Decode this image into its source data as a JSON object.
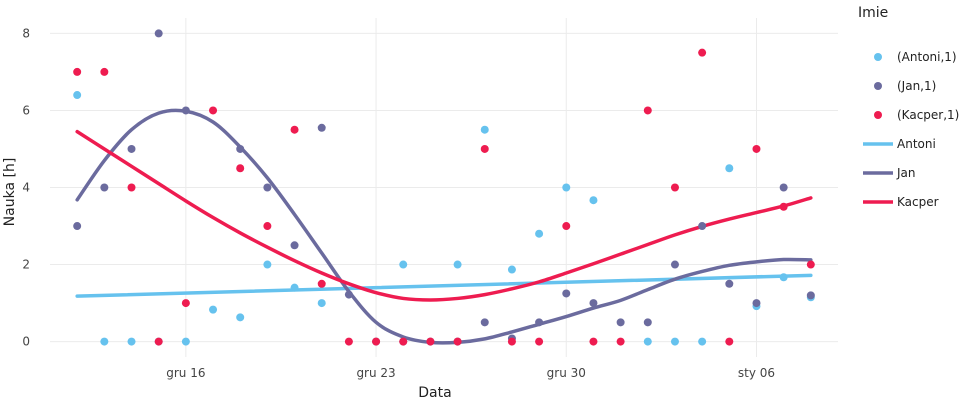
{
  "chart_data": {
    "type": "scatter",
    "xlabel": "Data",
    "ylabel": "Nauka [h]",
    "x_range": [
      "2023-12-11",
      "2024-01-09"
    ],
    "ylim": [
      -0.4,
      8.4
    ],
    "y_ticks": [
      0,
      2,
      4,
      6,
      8
    ],
    "x_ticks": [
      {
        "date": "2023-12-16",
        "label": "gru 16"
      },
      {
        "date": "2023-12-23",
        "label": "gru 23"
      },
      {
        "date": "2023-12-30",
        "label": "gru 30"
      },
      {
        "date": "2024-01-06",
        "label": "sty 06"
      }
    ],
    "grid": true,
    "legend": {
      "title": "Imie",
      "position": "right"
    },
    "series": [
      {
        "name": "(Antoni,1)",
        "kind": "markers",
        "color": "#66c2ee",
        "points": [
          [
            "2023-12-12",
            6.4
          ],
          [
            "2023-12-13",
            0
          ],
          [
            "2023-12-14",
            0
          ],
          [
            "2023-12-15",
            0
          ],
          [
            "2023-12-16",
            0
          ],
          [
            "2023-12-17",
            0.83
          ],
          [
            "2023-12-18",
            0.63
          ],
          [
            "2023-12-19",
            2
          ],
          [
            "2023-12-20",
            1.4
          ],
          [
            "2023-12-21",
            1
          ],
          [
            "2023-12-24",
            2
          ],
          [
            "2023-12-26",
            2
          ],
          [
            "2023-12-27",
            5.5
          ],
          [
            "2023-12-28",
            1.87
          ],
          [
            "2023-12-29",
            2.8
          ],
          [
            "2023-12-30",
            4
          ],
          [
            "2023-12-31",
            3.67
          ],
          [
            "2024-01-02",
            0
          ],
          [
            "2024-01-03",
            0
          ],
          [
            "2024-01-04",
            0
          ],
          [
            "2024-01-05",
            4.5
          ],
          [
            "2024-01-06",
            0.92
          ],
          [
            "2024-01-07",
            1.67
          ],
          [
            "2024-01-08",
            1.15
          ]
        ]
      },
      {
        "name": "(Jan,1)",
        "kind": "markers",
        "color": "#6b6b9e",
        "points": [
          [
            "2023-12-12",
            3
          ],
          [
            "2023-12-13",
            4
          ],
          [
            "2023-12-14",
            5
          ],
          [
            "2023-12-15",
            8
          ],
          [
            "2023-12-16",
            6
          ],
          [
            "2023-12-18",
            5
          ],
          [
            "2023-12-19",
            4
          ],
          [
            "2023-12-20",
            2.5
          ],
          [
            "2023-12-21",
            5.55
          ],
          [
            "2023-12-22",
            1.22
          ],
          [
            "2023-12-23",
            0
          ],
          [
            "2023-12-24",
            0
          ],
          [
            "2023-12-25",
            0
          ],
          [
            "2023-12-26",
            0
          ],
          [
            "2023-12-27",
            0.5
          ],
          [
            "2023-12-28",
            0.08
          ],
          [
            "2023-12-29",
            0.5
          ],
          [
            "2023-12-30",
            1.25
          ],
          [
            "2023-12-31",
            1
          ],
          [
            "2024-01-01",
            0.5
          ],
          [
            "2024-01-02",
            0.5
          ],
          [
            "2024-01-03",
            2
          ],
          [
            "2024-01-04",
            3
          ],
          [
            "2024-01-05",
            1.5
          ],
          [
            "2024-01-06",
            1
          ],
          [
            "2024-01-07",
            4
          ],
          [
            "2024-01-08",
            1.2
          ]
        ]
      },
      {
        "name": "(Kacper,1)",
        "kind": "markers",
        "color": "#ee1c50",
        "points": [
          [
            "2023-12-12",
            7
          ],
          [
            "2023-12-13",
            7
          ],
          [
            "2023-12-14",
            4
          ],
          [
            "2023-12-15",
            0
          ],
          [
            "2023-12-16",
            1
          ],
          [
            "2023-12-17",
            6
          ],
          [
            "2023-12-18",
            4.5
          ],
          [
            "2023-12-19",
            3
          ],
          [
            "2023-12-20",
            5.5
          ],
          [
            "2023-12-21",
            1.5
          ],
          [
            "2023-12-22",
            0
          ],
          [
            "2023-12-23",
            0
          ],
          [
            "2023-12-24",
            0
          ],
          [
            "2023-12-25",
            0
          ],
          [
            "2023-12-26",
            0
          ],
          [
            "2023-12-27",
            5
          ],
          [
            "2023-12-28",
            0
          ],
          [
            "2023-12-29",
            0
          ],
          [
            "2023-12-30",
            3
          ],
          [
            "2023-12-31",
            0
          ],
          [
            "2024-01-01",
            0
          ],
          [
            "2024-01-02",
            6
          ],
          [
            "2024-01-03",
            4
          ],
          [
            "2024-01-04",
            7.5
          ],
          [
            "2024-01-05",
            0
          ],
          [
            "2024-01-06",
            5
          ],
          [
            "2024-01-07",
            3.5
          ],
          [
            "2024-01-08",
            2
          ]
        ]
      },
      {
        "name": "Antoni",
        "kind": "line",
        "color": "#66c2ee",
        "points": [
          [
            "2023-12-12",
            1.18
          ],
          [
            "2024-01-08",
            1.72
          ]
        ]
      },
      {
        "name": "Jan",
        "kind": "line",
        "color": "#6b6b9e",
        "points": [
          [
            "2023-12-12",
            3.68
          ],
          [
            "2023-12-13",
            4.7
          ],
          [
            "2023-12-14",
            5.5
          ],
          [
            "2023-12-15",
            5.93
          ],
          [
            "2023-12-16",
            5.98
          ],
          [
            "2023-12-17",
            5.7
          ],
          [
            "2023-12-18",
            5.05
          ],
          [
            "2023-12-19",
            4.25
          ],
          [
            "2023-12-20",
            3.3
          ],
          [
            "2023-12-21",
            2.3
          ],
          [
            "2023-12-22",
            1.3
          ],
          [
            "2023-12-23",
            0.5
          ],
          [
            "2023-12-24",
            0.12
          ],
          [
            "2023-12-25",
            -0.02
          ],
          [
            "2023-12-26",
            -0.02
          ],
          [
            "2023-12-27",
            0.07
          ],
          [
            "2023-12-28",
            0.25
          ],
          [
            "2023-12-29",
            0.45
          ],
          [
            "2023-12-30",
            0.65
          ],
          [
            "2023-12-31",
            0.87
          ],
          [
            "2024-01-01",
            1.07
          ],
          [
            "2024-01-02",
            1.35
          ],
          [
            "2024-01-03",
            1.62
          ],
          [
            "2024-01-04",
            1.82
          ],
          [
            "2024-01-05",
            1.98
          ],
          [
            "2024-01-06",
            2.07
          ],
          [
            "2024-01-07",
            2.13
          ],
          [
            "2024-01-08",
            2.12
          ]
        ]
      },
      {
        "name": "Kacper",
        "kind": "line",
        "color": "#ee1c50",
        "points": [
          [
            "2023-12-12",
            5.45
          ],
          [
            "2023-12-13",
            5.0
          ],
          [
            "2023-12-14",
            4.55
          ],
          [
            "2023-12-15",
            4.1
          ],
          [
            "2023-12-16",
            3.65
          ],
          [
            "2023-12-17",
            3.22
          ],
          [
            "2023-12-18",
            2.82
          ],
          [
            "2023-12-19",
            2.45
          ],
          [
            "2023-12-20",
            2.1
          ],
          [
            "2023-12-21",
            1.78
          ],
          [
            "2023-12-22",
            1.5
          ],
          [
            "2023-12-23",
            1.27
          ],
          [
            "2023-12-24",
            1.12
          ],
          [
            "2023-12-25",
            1.08
          ],
          [
            "2023-12-26",
            1.12
          ],
          [
            "2023-12-27",
            1.22
          ],
          [
            "2023-12-28",
            1.37
          ],
          [
            "2023-12-29",
            1.55
          ],
          [
            "2023-12-30",
            1.78
          ],
          [
            "2023-12-31",
            2.02
          ],
          [
            "2024-01-01",
            2.27
          ],
          [
            "2024-01-02",
            2.52
          ],
          [
            "2024-01-03",
            2.77
          ],
          [
            "2024-01-04",
            2.99
          ],
          [
            "2024-01-05",
            3.18
          ],
          [
            "2024-01-06",
            3.35
          ],
          [
            "2024-01-07",
            3.52
          ],
          [
            "2024-01-08",
            3.73
          ]
        ]
      }
    ]
  }
}
